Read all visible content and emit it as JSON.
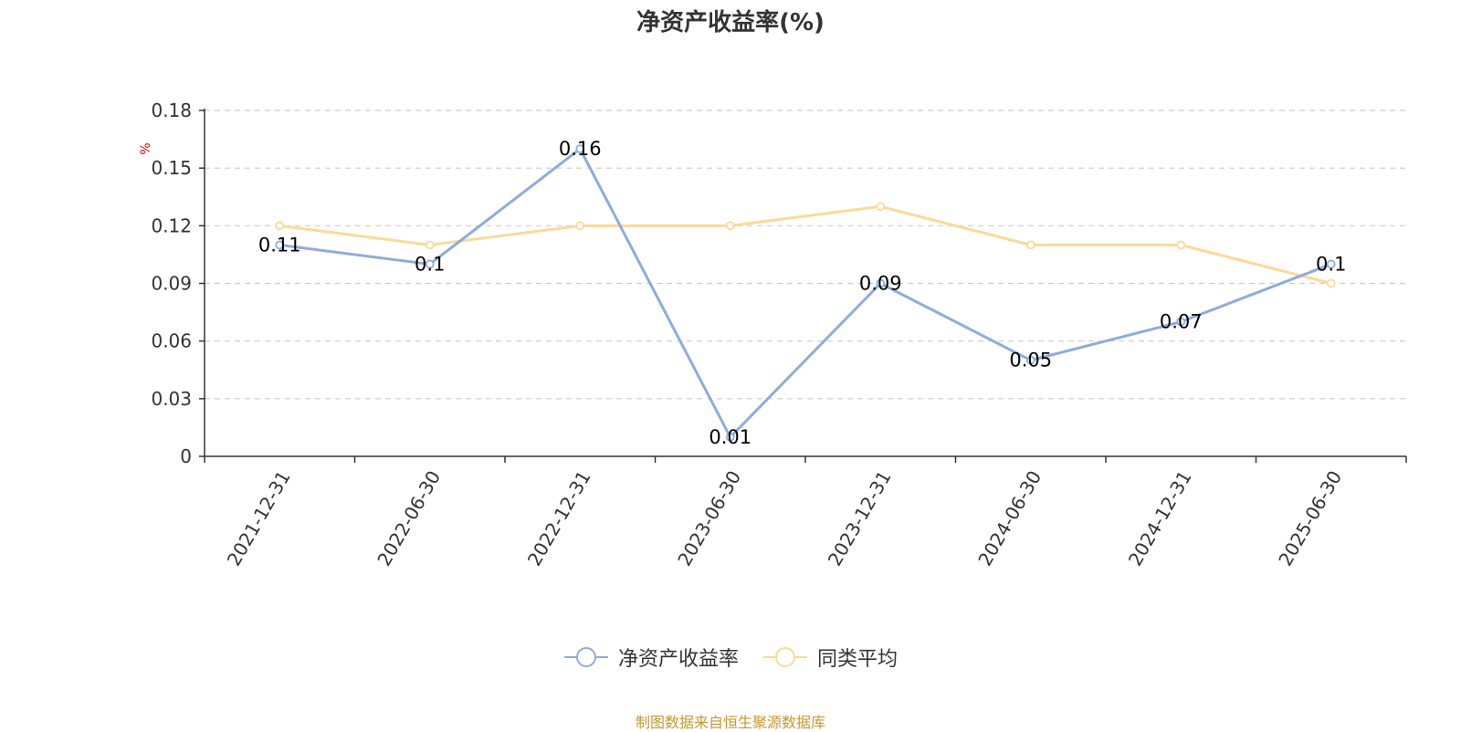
{
  "chart_data": {
    "type": "line",
    "title": "净资产收益率(%)",
    "ylabel": "%",
    "categories": [
      "2021-12-31",
      "2022-06-30",
      "2022-12-31",
      "2023-06-30",
      "2023-12-31",
      "2024-06-30",
      "2024-12-31",
      "2025-06-30"
    ],
    "series": [
      {
        "name": "净资产收益率",
        "color": "#8eacd9",
        "values": [
          0.11,
          0.1,
          0.16,
          0.01,
          0.09,
          0.05,
          0.07,
          0.1
        ],
        "labels": [
          "0.11",
          "0.1",
          "0.16",
          "0.01",
          "0.09",
          "0.05",
          "0.07",
          "0.1"
        ]
      },
      {
        "name": "同类平均",
        "color": "#fbd998",
        "values": [
          0.12,
          0.11,
          0.12,
          0.12,
          0.13,
          0.11,
          0.11,
          0.09
        ]
      }
    ],
    "ylim": [
      0,
      0.18
    ],
    "yticks": [
      "0",
      "0.03",
      "0.06",
      "0.09",
      "0.12",
      "0.15",
      "0.18"
    ],
    "grid": true,
    "legend_position": "bottom"
  },
  "source_note": "制图数据来自恒生聚源数据库",
  "source_color": "#c8962e",
  "ylabel_color": "#e00000"
}
